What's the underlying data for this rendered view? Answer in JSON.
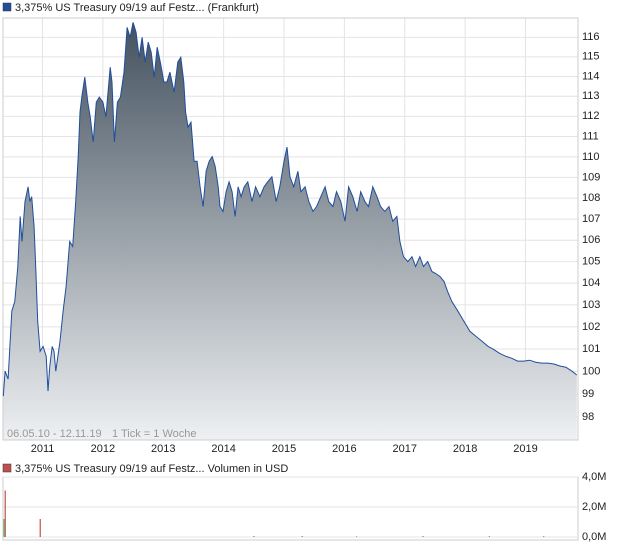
{
  "chart_data": [
    {
      "type": "area",
      "title": "3,375% US Treasury 09/19 auf Festz... (Frankfurt)",
      "annotations": [
        "06.05.10 - 12.11.19",
        "1 Tick = 1 Woche"
      ],
      "color": "#1f4e9c",
      "log_scale": true,
      "grid": true,
      "xlim": [
        2010.345,
        2019.87
      ],
      "ylim": [
        97,
        117
      ],
      "xticks": [
        2011,
        2012,
        2013,
        2014,
        2015,
        2016,
        2017,
        2018,
        2019
      ],
      "yticks": [
        98,
        99,
        100,
        101,
        102,
        103,
        104,
        105,
        106,
        107,
        108,
        109,
        110,
        111,
        112,
        113,
        114,
        115,
        116
      ],
      "x": [
        2010.35,
        2010.38,
        2010.43,
        2010.49,
        2010.54,
        2010.59,
        2010.63,
        2010.66,
        2010.71,
        2010.76,
        2010.79,
        2010.82,
        2010.86,
        2010.89,
        2010.92,
        2010.96,
        2011.01,
        2011.06,
        2011.09,
        2011.12,
        2011.16,
        2011.19,
        2011.22,
        2011.29,
        2011.34,
        2011.39,
        2011.45,
        2011.5,
        2011.55,
        2011.59,
        2011.62,
        2011.65,
        2011.7,
        2011.75,
        2011.79,
        2011.84,
        2011.89,
        2011.94,
        2012.0,
        2012.05,
        2012.12,
        2012.15,
        2012.19,
        2012.24,
        2012.29,
        2012.35,
        2012.4,
        2012.45,
        2012.5,
        2012.55,
        2012.6,
        2012.65,
        2012.7,
        2012.75,
        2012.8,
        2012.85,
        2012.9,
        2012.95,
        2013.01,
        2013.06,
        2013.11,
        2013.18,
        2013.24,
        2013.29,
        2013.34,
        2013.37,
        2013.41,
        2013.46,
        2013.51,
        2013.56,
        2013.61,
        2013.66,
        2013.71,
        2013.76,
        2013.81,
        2013.86,
        2013.91,
        2013.94,
        2013.99,
        2014.04,
        2014.09,
        2014.14,
        2014.19,
        2014.24,
        2014.29,
        2014.34,
        2014.4,
        2014.47,
        2014.53,
        2014.6,
        2014.67,
        2014.73,
        2014.8,
        2014.87,
        2014.93,
        2015.0,
        2015.05,
        2015.1,
        2015.16,
        2015.23,
        2015.28,
        2015.35,
        2015.41,
        2015.48,
        2015.54,
        2015.61,
        2015.68,
        2015.74,
        2015.81,
        2015.87,
        2015.94,
        2016.01,
        2016.07,
        2016.14,
        2016.21,
        2016.27,
        2016.34,
        2016.4,
        2016.47,
        2016.54,
        2016.6,
        2016.67,
        2016.74,
        2016.8,
        2016.87,
        2016.92,
        2016.98,
        2017.05,
        2017.12,
        2017.18,
        2017.25,
        2017.31,
        2017.38,
        2017.45,
        2017.51,
        2017.58,
        2017.65,
        2017.71,
        2017.78,
        2017.88,
        2017.98,
        2018.08,
        2018.18,
        2018.28,
        2018.38,
        2018.47,
        2018.57,
        2018.67,
        2018.77,
        2018.87,
        2018.97,
        2019.07,
        2019.17,
        2019.27,
        2019.37,
        2019.47,
        2019.57,
        2019.67,
        2019.77,
        2019.85
      ],
      "values": [
        98.91,
        100.01,
        99.66,
        102.71,
        103.16,
        104.77,
        107.13,
        105.94,
        107.84,
        108.55,
        107.84,
        108.07,
        106.64,
        104.54,
        102.25,
        100.9,
        101.12,
        100.68,
        99.13,
        100.24,
        101.12,
        100.9,
        100.01,
        101.35,
        102.71,
        103.85,
        105.94,
        105.71,
        107.84,
        110.02,
        112.22,
        112.96,
        113.97,
        112.71,
        111.98,
        110.73,
        112.71,
        112.96,
        112.71,
        111.98,
        114.47,
        113.72,
        110.73,
        112.71,
        112.96,
        114.22,
        116.51,
        116.0,
        116.77,
        116.26,
        114.98,
        116.0,
        114.73,
        115.75,
        115.23,
        113.97,
        115.49,
        114.73,
        113.72,
        113.72,
        114.22,
        113.21,
        114.73,
        114.98,
        113.72,
        112.22,
        111.47,
        111.71,
        109.79,
        109.79,
        108.55,
        107.6,
        109.3,
        109.79,
        110.02,
        109.54,
        108.55,
        107.6,
        107.37,
        108.31,
        108.79,
        108.31,
        107.13,
        108.55,
        108.07,
        108.55,
        108.79,
        107.84,
        108.55,
        108.07,
        108.55,
        108.79,
        109.03,
        107.84,
        108.55,
        109.79,
        110.48,
        109.03,
        108.55,
        109.3,
        108.31,
        108.55,
        107.84,
        107.37,
        107.6,
        108.07,
        108.55,
        107.84,
        107.6,
        108.31,
        107.84,
        106.9,
        108.55,
        108.07,
        107.37,
        108.31,
        107.84,
        107.6,
        108.55,
        108.07,
        107.6,
        107.37,
        107.6,
        106.9,
        107.13,
        105.94,
        105.23,
        105.0,
        105.23,
        104.77,
        105.23,
        104.77,
        105.0,
        104.54,
        104.45,
        104.31,
        104.08,
        103.62,
        103.16,
        102.71,
        102.25,
        101.8,
        101.57,
        101.35,
        101.12,
        100.99,
        100.81,
        100.68,
        100.59,
        100.46,
        100.46,
        100.5,
        100.41,
        100.37,
        100.37,
        100.33,
        100.24,
        100.19,
        100.01,
        99.84
      ]
    },
    {
      "type": "bar",
      "title": "3,375% US Treasury 09/19 auf Festz... Volumen in USD",
      "color_legend": "#c0504d",
      "xlim": [
        2010.345,
        2019.87
      ],
      "ylim": [
        0,
        4000000
      ],
      "yticks": [
        {
          "value": 0,
          "label": "0,0M"
        },
        {
          "value": 2000000,
          "label": "2,0M"
        },
        {
          "value": 4000000,
          "label": "4,0M"
        }
      ],
      "x": [
        2010.36,
        2010.38,
        2010.96,
        2014.5,
        2015.3,
        2016.2,
        2017.3,
        2018.4,
        2019.3
      ],
      "values": [
        1200000,
        3100000,
        1200000,
        60000,
        60000,
        50000,
        60000,
        50000,
        50000
      ],
      "colors": [
        "#5cb85c",
        "#c0504d",
        "#c0504d",
        "#c0504d",
        "#c0504d",
        "#5cb85c",
        "#c0504d",
        "#c0504d",
        "#c0504d"
      ]
    }
  ]
}
